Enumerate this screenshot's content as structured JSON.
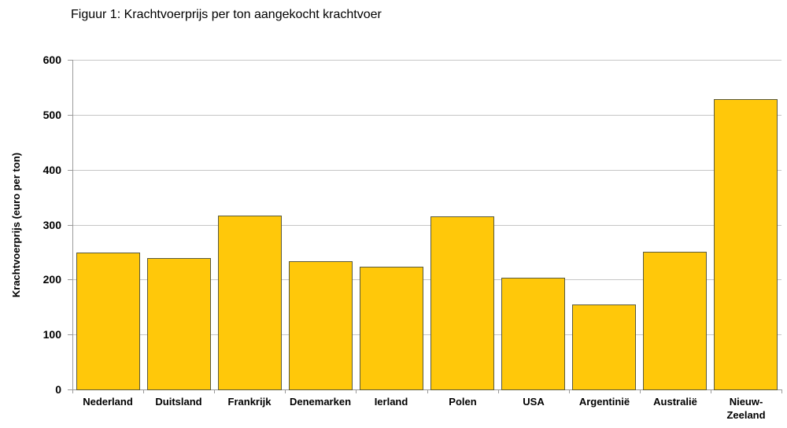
{
  "chart_data": {
    "type": "bar",
    "title": "Figuur 1: Krachtvoerprijs per ton aangekocht krachtvoer",
    "ylabel": "Krachtvoerprijs (euro per ton)",
    "xlabel": "",
    "categories": [
      "Nederland",
      "Duitsland",
      "Frankrijk",
      "Denemarken",
      "Ierland",
      "Polen",
      "USA",
      "Argentinië",
      "Australië",
      "Nieuw-Zeeland"
    ],
    "category_display_lines": [
      [
        "Nederland"
      ],
      [
        "Duitsland"
      ],
      [
        "Frankrijk"
      ],
      [
        "Denemarken"
      ],
      [
        "Ierland"
      ],
      [
        "Polen"
      ],
      [
        "USA"
      ],
      [
        "Argentinië"
      ],
      [
        "Australië"
      ],
      [
        "Nieuw-",
        "Zeeland"
      ]
    ],
    "values": [
      249,
      239,
      316,
      233,
      224,
      315,
      204,
      155,
      251,
      529
    ],
    "unit": "euro per ton",
    "ylim": [
      0,
      600
    ],
    "yticks": [
      0,
      100,
      200,
      300,
      400,
      500,
      600
    ],
    "grid": "horizontal",
    "legend": "none",
    "colors": {
      "bar_fill": "#FFC80A",
      "bar_border": "#5A5A3C",
      "gridline": "#C6C6C6",
      "axis": "#9A9A9A",
      "text": "#000000",
      "background": "#FFFFFF"
    }
  }
}
